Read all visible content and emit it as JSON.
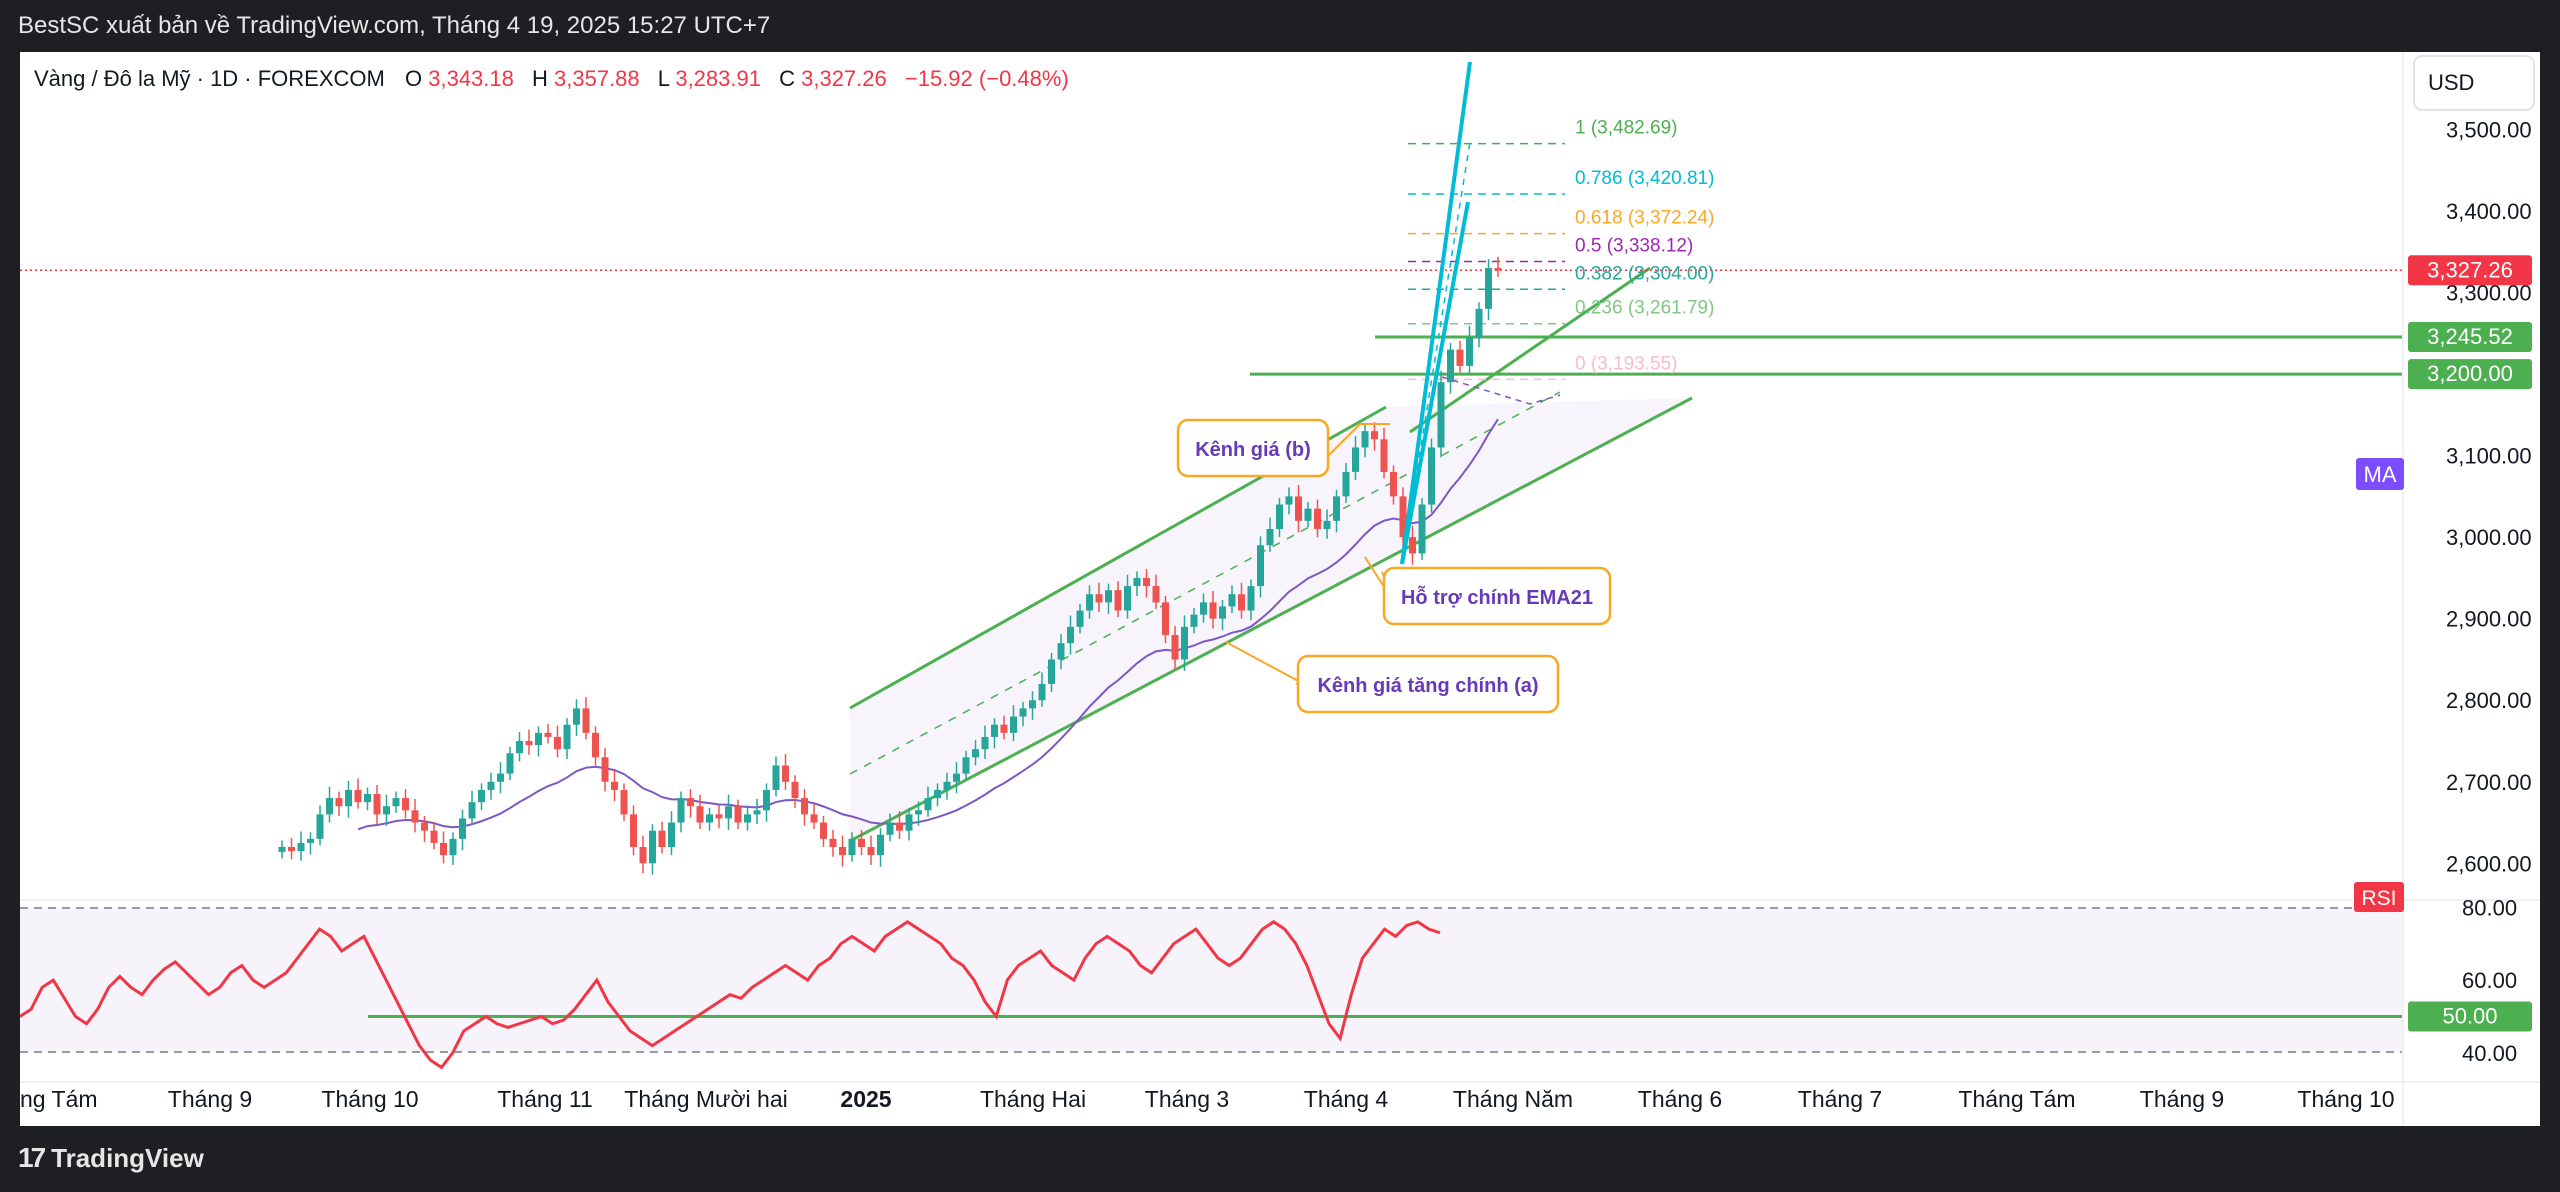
{
  "header": {
    "publisher": "BestSC xuất bản về TradingView.com, Tháng 4 19, 2025 15:27 UTC+7"
  },
  "legend": {
    "symbol": "Vàng / Đô la Mỹ · 1D · FOREXCOM",
    "o_label": "O",
    "o_value": "3,343.18",
    "h_label": "H",
    "h_value": "3,357.88",
    "l_label": "L",
    "l_value": "3,283.91",
    "c_label": "C",
    "c_value": "3,327.26",
    "change": "−15.92 (−0.48%)"
  },
  "currency": "USD",
  "footer": {
    "brand": "TradingView"
  },
  "colors": {
    "up": "#26a69a",
    "down": "#ef5350",
    "ema": "#7e57c2",
    "rsi": "#f23645",
    "channel": "#4caf50",
    "fan": "#00bcd4",
    "annotation": "#f9a825",
    "annotation_text": "#673ab7"
  },
  "chart_data": {
    "type": "candlestick",
    "y_axis": {
      "range": [
        2555,
        3595
      ],
      "tick_labels": [
        "3,500.00",
        "3,400.00",
        "3,300.00",
        "3,200.00",
        "3,100.00",
        "3,000.00",
        "2,900.00",
        "2,800.00",
        "2,700.00",
        "2,600.00"
      ],
      "tick_values": [
        3500,
        3400,
        3300,
        3200,
        3100,
        3000,
        2900,
        2800,
        2700,
        2600
      ]
    },
    "x_axis": {
      "tick_labels": [
        "ng Tám",
        "Tháng 9",
        "Tháng 10",
        "Tháng 11",
        "Tháng Mười hai",
        "2025",
        "Tháng Hai",
        "Tháng 3",
        "Tháng 4",
        "Tháng Năm",
        "Tháng 6",
        "Tháng 7",
        "Tháng Tám",
        "Tháng 9",
        "Tháng 10"
      ]
    },
    "last_price": {
      "label": "3,327.26",
      "value": 3327.26
    },
    "levels": [
      {
        "label": "3,245.52",
        "value": 3245.52
      },
      {
        "label": "3,200.00",
        "value": 3200.0
      }
    ],
    "ma_label": "MA",
    "fibonacci": [
      {
        "label": "1 (3,482.69)",
        "value": 3482.69
      },
      {
        "label": "0.786 (3,420.81)",
        "value": 3420.81
      },
      {
        "label": "0.618 (3,372.24)",
        "value": 3372.24
      },
      {
        "label": "0.5 (3,338.12)",
        "value": 3338.12
      },
      {
        "label": "0.382 (3,304.00)",
        "value": 3304.0
      },
      {
        "label": "0.236 (3,261.79)",
        "value": 3261.79
      },
      {
        "label": "0 (3,193.55)",
        "value": 3193.55
      }
    ],
    "annotations": [
      {
        "text": "Kênh giá (b)"
      },
      {
        "text": "Hỗ trợ chính EMA21"
      },
      {
        "text": "Kênh giá tăng chính (a)"
      }
    ],
    "closes": [
      2620,
      2615,
      2625,
      2630,
      2660,
      2680,
      2670,
      2690,
      2675,
      2685,
      2660,
      2670,
      2680,
      2665,
      2650,
      2640,
      2625,
      2610,
      2630,
      2655,
      2675,
      2690,
      2700,
      2710,
      2735,
      2750,
      2745,
      2760,
      2755,
      2740,
      2770,
      2790,
      2760,
      2730,
      2700,
      2690,
      2660,
      2620,
      2600,
      2640,
      2620,
      2650,
      2680,
      2670,
      2650,
      2660,
      2655,
      2670,
      2650,
      2660,
      2665,
      2690,
      2720,
      2700,
      2680,
      2660,
      2650,
      2630,
      2620,
      2610,
      2630,
      2620,
      2610,
      2635,
      2650,
      2640,
      2660,
      2665,
      2680,
      2690,
      2700,
      2710,
      2730,
      2740,
      2755,
      2770,
      2760,
      2780,
      2790,
      2800,
      2820,
      2850,
      2870,
      2890,
      2910,
      2930,
      2920,
      2935,
      2910,
      2940,
      2950,
      2940,
      2920,
      2880,
      2850,
      2890,
      2905,
      2920,
      2900,
      2915,
      2930,
      2910,
      2940,
      2990,
      3010,
      3040,
      3050,
      3020,
      3035,
      3010,
      3020,
      3050,
      3080,
      3110,
      3130,
      3120,
      3080,
      3050,
      3000,
      2980,
      3040,
      3110,
      3190,
      3230,
      3210,
      3245,
      3280,
      3330,
      3327.26
    ],
    "rsi": {
      "label": "RSI",
      "tick_labels": [
        "80.00",
        "60.00",
        "40.00"
      ],
      "tick_values": [
        80,
        60,
        40
      ],
      "range": [
        32,
        82
      ],
      "level_label": "50.00",
      "level_value": 50,
      "values": [
        50,
        52,
        58,
        60,
        55,
        50,
        48,
        52,
        58,
        61,
        58,
        56,
        60,
        63,
        65,
        62,
        59,
        56,
        58,
        62,
        64,
        60,
        58,
        60,
        62,
        66,
        70,
        74,
        72,
        68,
        70,
        72,
        66,
        60,
        54,
        48,
        42,
        38,
        36,
        40,
        46,
        48,
        50,
        48,
        47,
        48,
        49,
        50,
        48,
        49,
        52,
        56,
        60,
        54,
        50,
        46,
        44,
        42,
        44,
        46,
        48,
        50,
        52,
        54,
        56,
        55,
        58,
        60,
        62,
        64,
        62,
        60,
        64,
        66,
        70,
        72,
        70,
        68,
        72,
        74,
        76,
        74,
        72,
        70,
        66,
        64,
        60,
        54,
        50,
        60,
        64,
        66,
        68,
        64,
        62,
        60,
        66,
        70,
        72,
        70,
        68,
        64,
        62,
        66,
        70,
        72,
        74,
        70,
        66,
        64,
        66,
        70,
        74,
        76,
        74,
        70,
        64,
        56,
        48,
        44,
        56,
        66,
        70,
        74,
        72,
        75,
        76,
        74,
        73
      ]
    }
  }
}
